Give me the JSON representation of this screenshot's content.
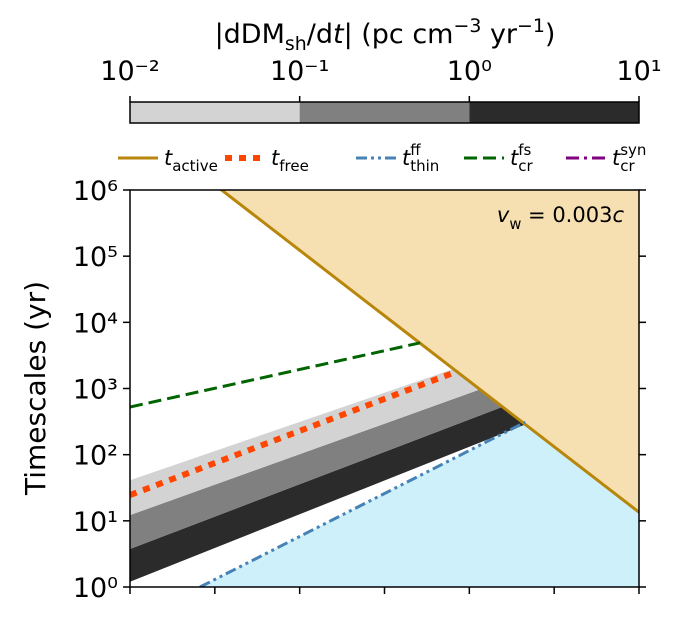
{
  "chart_data": {
    "type": "line",
    "y_label": "Timescales (yr)",
    "ylog": true,
    "ylim": [
      1,
      1000000
    ],
    "yticks": [
      {
        "value": 1,
        "label": "10⁰"
      },
      {
        "value": 10,
        "label": "10¹"
      },
      {
        "value": 100,
        "label": "10²"
      },
      {
        "value": 1000,
        "label": "10³"
      },
      {
        "value": 10000,
        "label": "10⁴"
      },
      {
        "value": 100000,
        "label": "10⁵"
      },
      {
        "value": 1000000,
        "label": "10⁶"
      }
    ],
    "xlim": [
      0,
      6
    ],
    "xticks": [
      0,
      1,
      2,
      3,
      4,
      5,
      6
    ],
    "colorbar": {
      "label_parts": [
        {
          "text": "|dDM"
        },
        {
          "text": "sh",
          "style": "sub"
        },
        {
          "text": "/d"
        },
        {
          "text": "t",
          "style": "italic"
        },
        {
          "text": "| (pc cm"
        },
        {
          "text": "−3",
          "style": "sup"
        },
        {
          "text": " yr"
        },
        {
          "text": "−1",
          "style": "sup"
        },
        {
          "text": ")"
        }
      ],
      "log": true,
      "lim": [
        0.01,
        10
      ],
      "ticks": [
        {
          "value": 0.01,
          "label": "10⁻²"
        },
        {
          "value": 0.1,
          "label": "10⁻¹"
        },
        {
          "value": 1,
          "label": "10⁰"
        },
        {
          "value": 10,
          "label": "10¹"
        }
      ],
      "segments": [
        {
          "from": 0.01,
          "to": 0.1,
          "color": "#d3d3d3"
        },
        {
          "from": 0.1,
          "to": 1,
          "color": "#808080"
        },
        {
          "from": 1,
          "to": 10,
          "color": "#2b2b2b"
        }
      ]
    },
    "series": [
      {
        "name": "t",
        "sub": "active",
        "color": "#b8860b",
        "dash": "solid",
        "fill": "#f6dfb0",
        "fill_side": "above",
        "x": [
          0,
          6
        ],
        "values": [
          11700000,
          13.5
        ]
      },
      {
        "name": "t",
        "sub": "free",
        "color": "#ff4500",
        "dash": "dotted",
        "x": [
          0,
          3.85
        ],
        "values": [
          24.5,
          1800
        ]
      },
      {
        "name": "t",
        "sub": "thin",
        "sup": "ff",
        "color": "#4682b4",
        "dash": "dashdotdot",
        "fill": "#cdf0fb",
        "fill_side": "below",
        "x": [
          0.825,
          4.66
        ],
        "values": [
          1,
          310
        ]
      },
      {
        "name": "t",
        "sub": "cr",
        "sup": "fs",
        "color": "#006400",
        "dash": "dashed",
        "x": [
          0,
          3.42
        ],
        "values": [
          525,
          4900
        ]
      },
      {
        "name": "t",
        "sub": "cr",
        "sup": "syn",
        "color": "#800080",
        "dash": "dashdot",
        "x": [
          0,
          6
        ],
        "values": [
          null,
          null
        ]
      }
    ],
    "bands": {
      "x": [
        0,
        6
      ],
      "items": [
        {
          "color": "#2b2b2b",
          "lower": [
            1.2,
            1380
          ],
          "upper": [
            3.75,
            3240
          ]
        },
        {
          "color": "#808080",
          "lower": [
            3.75,
            3240
          ],
          "upper": [
            12.2,
            7080
          ]
        },
        {
          "color": "#d3d3d3",
          "lower": [
            12.2,
            7080
          ],
          "upper": [
            41,
            18200
          ]
        }
      ]
    },
    "annotation": [
      {
        "text": "v",
        "style": "italic"
      },
      {
        "text": "w",
        "style": "sub"
      },
      {
        "text": " = 0.003"
      },
      {
        "text": "c",
        "style": "italic"
      }
    ]
  }
}
